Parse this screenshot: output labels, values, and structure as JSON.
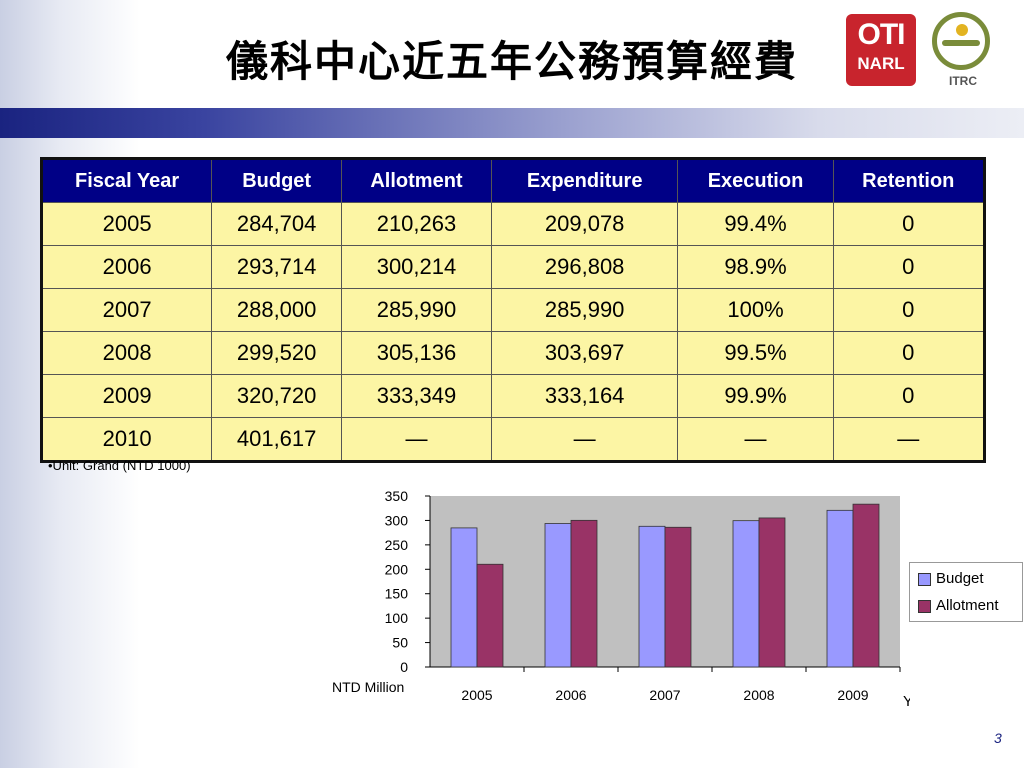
{
  "slide": {
    "title": "儀科中心近五年公務預算經費",
    "logo_narl_top": "OTI",
    "logo_narl_bottom": "NARL",
    "logo_itrc": "ITRC",
    "note": "•Unit: Grand (NTD 1000)",
    "page_number": "3"
  },
  "table": {
    "headers": [
      "Fiscal Year",
      "Budget",
      "Allotment",
      "Expenditure",
      "Execution",
      "Retention"
    ],
    "rows": [
      [
        "2005",
        "284,704",
        "210,263",
        "209,078",
        "99.4%",
        "0"
      ],
      [
        "2006",
        "293,714",
        "300,214",
        "296,808",
        "98.9%",
        "0"
      ],
      [
        "2007",
        "288,000",
        "285,990",
        "285,990",
        "100%",
        "0"
      ],
      [
        "2008",
        "299,520",
        "305,136",
        "303,697",
        "99.5%",
        "0"
      ],
      [
        "2009",
        "320,720",
        "333,349",
        "333,164",
        "99.9%",
        "0"
      ],
      [
        "2010",
        "401,617",
        "—",
        "—",
        "—",
        "—"
      ]
    ]
  },
  "chart_data": {
    "type": "bar",
    "categories": [
      "2005",
      "2006",
      "2007",
      "2008",
      "2009"
    ],
    "series": [
      {
        "name": "Budget",
        "values": [
          284.7,
          293.7,
          288.0,
          299.5,
          320.7
        ],
        "color": "#9999ff"
      },
      {
        "name": "Allotment",
        "values": [
          210.3,
          300.2,
          286.0,
          305.1,
          333.3
        ],
        "color": "#993366"
      }
    ],
    "ylim": [
      0,
      350
    ],
    "yticks": [
      0,
      50,
      100,
      150,
      200,
      250,
      300,
      350
    ],
    "ylabel": "NTD Million",
    "xlabel": "Year",
    "grid": false,
    "legend": "right"
  }
}
